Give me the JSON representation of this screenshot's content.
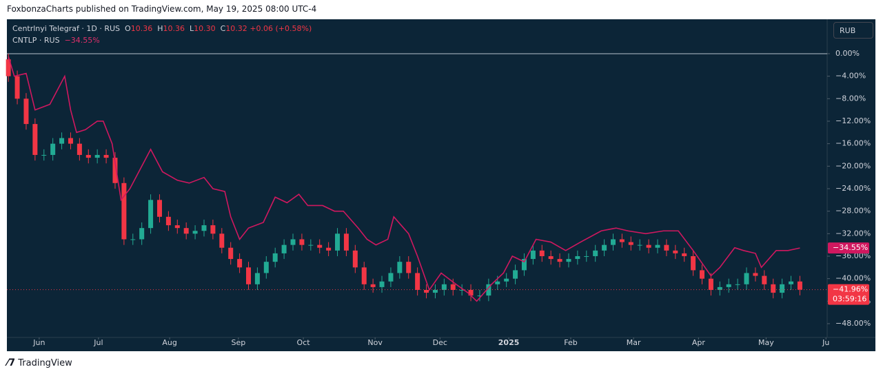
{
  "header": {
    "text": "FoxbonzaCharts published on TradingView.com, May 19, 2025 08:00 UTC-4"
  },
  "legend": {
    "symbol": "Centrlnyi Telegraf · 1D · RUS",
    "o_label": "O",
    "o": "10.36",
    "h_label": "H",
    "h": "10.36",
    "l_label": "L",
    "l": "10.30",
    "c_label": "C",
    "c": "10.32",
    "change": "+0.06 (+0.58%)",
    "compare": "CNTLP · RUS",
    "compare_change": "−34.55%"
  },
  "currency_button": "RUB",
  "footer": {
    "brand": "TradingView"
  },
  "chart_data": {
    "type": "candlestick",
    "xlim": [
      -0.5,
      276.2
    ],
    "ylim": [
      -50.45,
      6.12
    ],
    "xticks": [
      {
        "value": 10.4,
        "label": "Jun"
      },
      {
        "value": 30.4,
        "label": "Jul"
      },
      {
        "value": 54.4,
        "label": "Aug"
      },
      {
        "value": 77.6,
        "label": "Sep"
      },
      {
        "value": 99.5,
        "label": "Oct"
      },
      {
        "value": 123.7,
        "label": "Nov"
      },
      {
        "value": 145.6,
        "label": "Dec"
      },
      {
        "value": 168.8,
        "label": "2025"
      },
      {
        "value": 189.7,
        "label": "Feb"
      },
      {
        "value": 210.9,
        "label": "Mar"
      },
      {
        "value": 232.8,
        "label": "Apr"
      },
      {
        "value": 255.6,
        "label": "May"
      },
      {
        "value": 275.8,
        "label": "Ju"
      }
    ],
    "yticks": [
      {
        "value": 0,
        "label": "0.00%"
      },
      {
        "value": -4,
        "label": "−4.00%"
      },
      {
        "value": -8,
        "label": "−8.00%"
      },
      {
        "value": -12,
        "label": "−12.00%"
      },
      {
        "value": -16,
        "label": "−16.00%"
      },
      {
        "value": -20,
        "label": "−20.00%"
      },
      {
        "value": -24,
        "label": "−24.00%"
      },
      {
        "value": -28,
        "label": "−28.00%"
      },
      {
        "value": -32,
        "label": "−32.00%"
      },
      {
        "value": -36,
        "label": "−36.00%"
      },
      {
        "value": -40,
        "label": "−40.00%"
      },
      {
        "value": -44,
        "label": "−44.00%"
      },
      {
        "value": -48,
        "label": "−48.00%"
      }
    ],
    "candles": {
      "name": "Centrlnyi Telegraf",
      "up_color": "#22ab94",
      "down_color": "#f23645",
      "x": [
        0,
        3,
        6,
        9,
        12,
        15,
        18,
        21,
        24,
        27,
        30,
        33,
        36,
        39,
        42,
        45,
        48,
        51,
        54,
        57,
        60,
        63,
        66,
        69,
        72,
        75,
        78,
        81,
        84,
        87,
        90,
        93,
        96,
        99,
        102,
        105,
        108,
        111,
        114,
        117,
        120,
        123,
        126,
        129,
        132,
        135,
        138,
        141,
        144,
        147,
        150,
        153,
        156,
        159,
        162,
        165,
        168,
        171,
        174,
        177,
        180,
        183,
        186,
        189,
        192,
        195,
        198,
        201,
        204,
        207,
        210,
        213,
        216,
        219,
        222,
        225,
        228,
        231,
        234,
        237,
        240,
        243,
        246,
        249,
        252,
        255,
        258,
        261,
        264,
        267
      ],
      "open": [
        -1,
        -4,
        -8,
        -12.5,
        -18,
        -18,
        -16,
        -15,
        -16,
        -18,
        -18.5,
        -18,
        -18.5,
        -23,
        -33,
        -33,
        -31,
        -26,
        -29,
        -30.5,
        -31,
        -32,
        -31.5,
        -30.5,
        -32,
        -34.5,
        -36.5,
        -38,
        -41,
        -39,
        -37,
        -35.5,
        -34,
        -33,
        -34,
        -34,
        -34.5,
        -35,
        -32,
        -35,
        -38,
        -41,
        -41.5,
        -40.5,
        -39,
        -37,
        -39,
        -42,
        -42.5,
        -42,
        -41,
        -42,
        -42,
        -43,
        -43,
        -41,
        -40.5,
        -40,
        -38.5,
        -36.5,
        -35,
        -36,
        -36.5,
        -37,
        -36.5,
        -36,
        -36,
        -35,
        -34,
        -33,
        -33.5,
        -34,
        -34,
        -34.5,
        -34,
        -35,
        -35.5,
        -36,
        -38.5,
        -40,
        -42,
        -41.5,
        -41,
        -41,
        -39,
        -39.5,
        -41,
        -42.5,
        -41,
        -40.5
      ],
      "high": [
        0,
        -3,
        -7,
        -11.5,
        -17,
        -15,
        -14,
        -14,
        -15,
        -17,
        -17,
        -17,
        -17.5,
        -22,
        -32,
        -30,
        -25,
        -25,
        -28,
        -29.5,
        -30,
        -30.5,
        -29.5,
        -29.5,
        -31,
        -33.5,
        -35.5,
        -37,
        -38,
        -36,
        -34.5,
        -33,
        -32,
        -32,
        -33,
        -33,
        -33.5,
        -31,
        -31,
        -34,
        -37,
        -40,
        -39.5,
        -38,
        -36,
        -36,
        -38,
        -41,
        -41,
        -40,
        -40,
        -41,
        -41,
        -42,
        -40,
        -39.5,
        -39,
        -37.5,
        -35.5,
        -34,
        -34,
        -35,
        -35.5,
        -35.5,
        -35,
        -35,
        -34,
        -33,
        -32,
        -32,
        -32.5,
        -33,
        -33,
        -33,
        -33,
        -34,
        -34.5,
        -35,
        -37.5,
        -39,
        -40.5,
        -40,
        -40,
        -38,
        -38,
        -38.5,
        -40,
        -40,
        -39.5,
        -39.5
      ],
      "low": [
        -5,
        -9,
        -13.5,
        -19,
        -19,
        -19,
        -17,
        -17,
        -19,
        -19.5,
        -19.5,
        -19.5,
        -24,
        -34,
        -34,
        -34,
        -32,
        -30,
        -31.5,
        -32,
        -33,
        -33,
        -32.5,
        -33,
        -35.5,
        -37.5,
        -39,
        -42,
        -42,
        -40,
        -38,
        -36.5,
        -35,
        -35,
        -35,
        -35.5,
        -36,
        -36,
        -36,
        -39,
        -42,
        -42.5,
        -42.5,
        -41.5,
        -40,
        -40,
        -43,
        -43.5,
        -43.5,
        -43,
        -43,
        -43,
        -44,
        -44,
        -44,
        -42,
        -41.5,
        -41,
        -39.5,
        -37.5,
        -37,
        -37.5,
        -38,
        -38,
        -37.5,
        -37,
        -37,
        -36,
        -35,
        -34.5,
        -35,
        -35,
        -35.5,
        -35.5,
        -36,
        -36.5,
        -37,
        -39.5,
        -41,
        -43,
        -43,
        -42.5,
        -42,
        -42,
        -40.5,
        -42,
        -43.5,
        -43.5,
        -42,
        -42.96
      ],
      "close": [
        -4,
        -8,
        -12.5,
        -18,
        -18,
        -16,
        -15,
        -16,
        -18,
        -18.5,
        -18,
        -18.5,
        -23,
        -33,
        -33,
        -31,
        -26,
        -29,
        -30.5,
        -31,
        -32,
        -31.5,
        -30.5,
        -32,
        -34.5,
        -36.5,
        -38,
        -41,
        -39,
        -37,
        -35.5,
        -34,
        -33,
        -34,
        -34,
        -34.5,
        -35,
        -32,
        -35,
        -38,
        -41,
        -41.5,
        -40.5,
        -39,
        -37,
        -39,
        -42,
        -42.5,
        -42,
        -41,
        -42,
        -42,
        -43,
        -43,
        -41,
        -40.5,
        -40,
        -38.5,
        -36.5,
        -35,
        -36,
        -36.5,
        -37,
        -36.5,
        -36,
        -36,
        -35,
        -34,
        -33,
        -33.5,
        -34,
        -34,
        -34.5,
        -34,
        -35,
        -35.5,
        -36,
        -38.5,
        -40,
        -42,
        -41.5,
        -41,
        -41,
        -39,
        -39.5,
        -41,
        -42.5,
        -41,
        -40.5,
        -41.96
      ],
      "last_value": -41.96,
      "last_label": "−41.96%",
      "countdown": "03:59:16"
    },
    "series": [
      {
        "name": "CNTLP",
        "color": "#d0185f",
        "x": [
          0,
          2,
          6,
          9,
          14,
          17,
          19,
          21,
          23,
          26,
          30,
          32,
          35,
          38,
          41,
          44,
          48,
          52,
          57,
          61,
          66,
          69,
          73,
          75,
          78,
          81,
          86,
          90,
          94,
          98,
          101,
          106,
          110,
          113,
          118,
          121,
          124,
          128,
          130,
          135,
          138,
          142,
          146,
          151,
          155,
          158,
          163,
          167,
          170,
          174,
          178,
          183,
          188,
          193,
          200,
          205,
          209,
          215,
          221,
          226,
          231,
          237,
          240,
          245,
          248,
          252,
          254,
          259,
          263,
          267
        ],
        "values": [
          -0.5,
          -4,
          -3.5,
          -10,
          -9,
          -6,
          -4,
          -10,
          -14,
          -13.5,
          -12,
          -12,
          -16,
          -26,
          -24,
          -21,
          -17,
          -21,
          -22.5,
          -23,
          -22,
          -24,
          -24.5,
          -29,
          -33,
          -31,
          -30,
          -25.5,
          -26.5,
          -25,
          -27,
          -27,
          -28,
          -28,
          -31,
          -33,
          -34,
          -33,
          -29,
          -32,
          -36,
          -42,
          -39,
          -41,
          -42.5,
          -44,
          -41,
          -39,
          -36,
          -37,
          -33,
          -33.5,
          -35,
          -33.5,
          -31.5,
          -31,
          -31.5,
          -32,
          -31.5,
          -31.5,
          -35,
          -39.5,
          -38,
          -34.5,
          -35,
          -35.5,
          -38,
          -35,
          -35,
          -34.55
        ],
        "last_value": -34.55,
        "last_label": "−34.55%"
      }
    ]
  }
}
